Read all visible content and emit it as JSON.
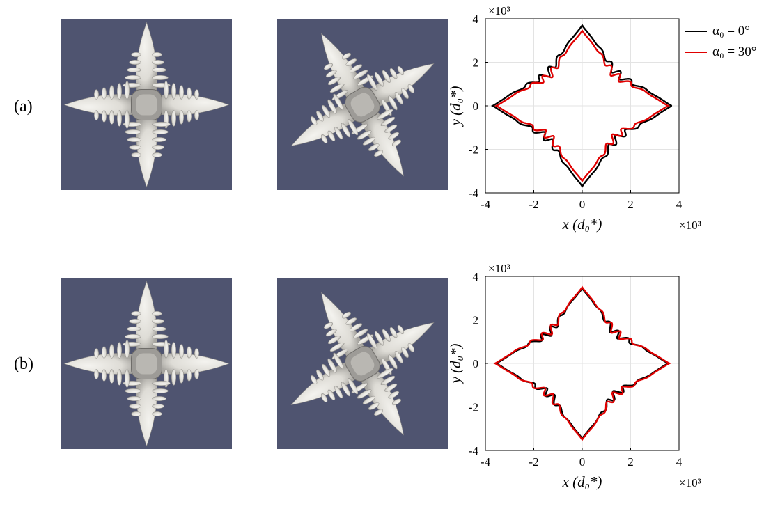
{
  "rows": [
    {
      "label": "(a)"
    },
    {
      "label": "(b)"
    }
  ],
  "render_background": "#4f5470",
  "crystal_color": "#dedcd6",
  "legend": [
    {
      "name": "α₀ = 0°",
      "color": "#000000"
    },
    {
      "name": "α₀ = 30°",
      "color": "#e00000"
    }
  ],
  "plot_text": {
    "xlabel": "x (d₀*)",
    "ylabel": "y (d₀*)",
    "exp_label": "×10³"
  },
  "chart_data": [
    {
      "type": "line",
      "panel": "(a)",
      "xlabel": "x (d₀*)",
      "ylabel": "y (d₀*)",
      "xlim": [
        -4,
        4
      ],
      "ylim": [
        -4,
        4
      ],
      "xticks": [
        -4,
        -2,
        0,
        2,
        4
      ],
      "yticks": [
        -4,
        -2,
        0,
        2,
        4
      ],
      "scale_factor": "×10³",
      "grid": true,
      "legend_position": "outside top-right",
      "series": [
        {
          "name": "α₀ = 0°",
          "color": "#000000",
          "tip_extent": {
            "x": 3.7,
            "y": 3.7
          }
        },
        {
          "name": "α₀ = 30°",
          "color": "#e00000",
          "tip_extent": {
            "x": 3.55,
            "y": 3.45
          }
        }
      ]
    },
    {
      "type": "line",
      "panel": "(b)",
      "xlabel": "x (d₀*)",
      "ylabel": "y (d₀*)",
      "xlim": [
        -4,
        4
      ],
      "ylim": [
        -4,
        4
      ],
      "xticks": [
        -4,
        -2,
        0,
        2,
        4
      ],
      "yticks": [
        -4,
        -2,
        0,
        2,
        4
      ],
      "scale_factor": "×10³",
      "grid": true,
      "series": [
        {
          "name": "α₀ = 0°",
          "color": "#000000",
          "tip_extent": {
            "x": 3.55,
            "y": 3.45
          }
        },
        {
          "name": "α₀ = 30°",
          "color": "#e00000",
          "tip_extent": {
            "x": 3.6,
            "y": 3.5
          }
        }
      ]
    }
  ]
}
